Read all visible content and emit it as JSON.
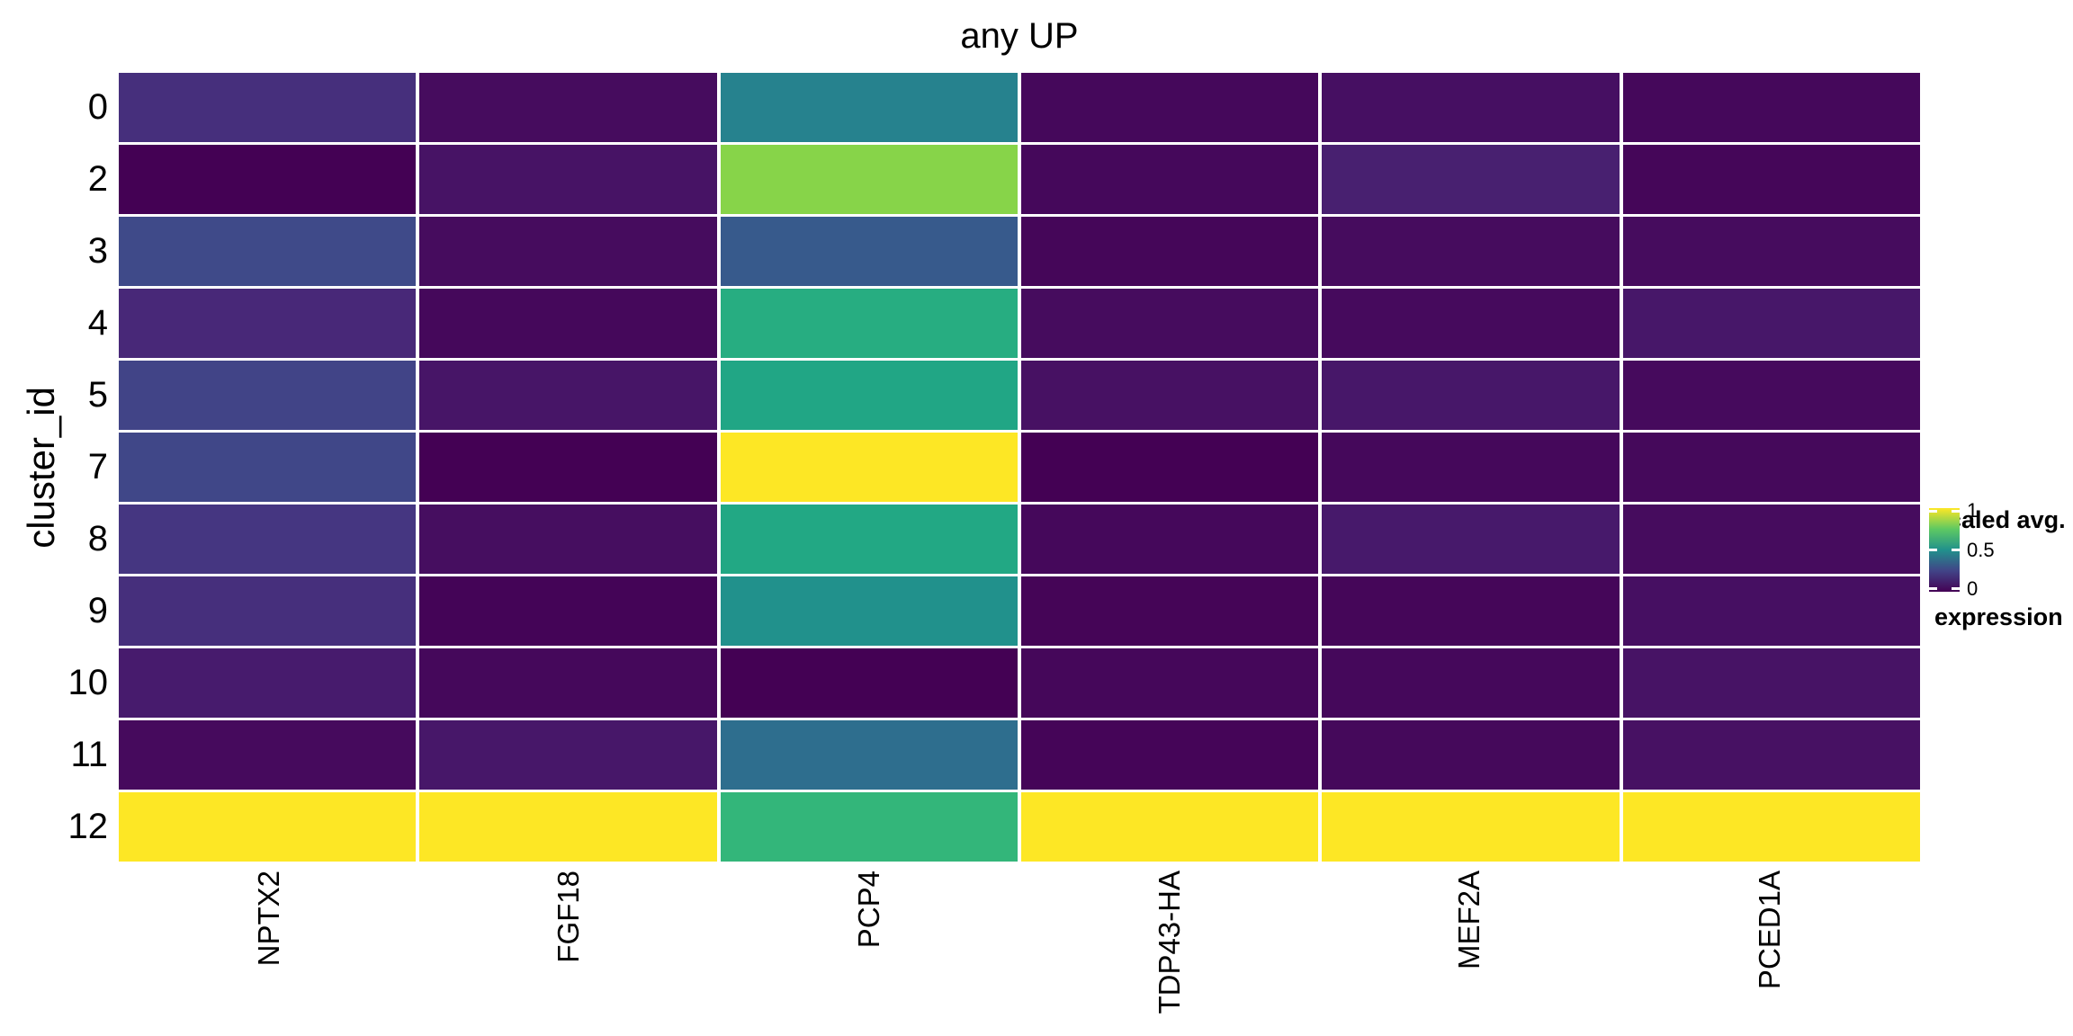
{
  "title": "any UP",
  "colors": {
    "background": "#ffffff",
    "text": "#000000",
    "tile_gap": "#ffffff",
    "viridis_low": "#440154",
    "viridis_mid": "#21918c",
    "viridis_high": "#fde725"
  },
  "axes": {
    "y_title": "cluster_id",
    "x_labels": [
      "NPTX2",
      "FGF18",
      "PCP4",
      "TDP43-HA",
      "MEF2A",
      "PCED1A"
    ],
    "y_labels": [
      "0",
      "2",
      "3",
      "4",
      "5",
      "7",
      "8",
      "9",
      "10",
      "11",
      "12"
    ]
  },
  "legend": {
    "title_line1": "scaled avg.",
    "title_line2": "expression",
    "ticks": [
      {
        "label": "1",
        "pos_pct": 3.5
      },
      {
        "label": "0.5",
        "pos_pct": 50
      },
      {
        "label": "0",
        "pos_pct": 96.5
      }
    ]
  },
  "chart_data": {
    "type": "heatmap",
    "title": "any UP",
    "xlabel": "",
    "ylabel": "cluster_id",
    "legend_title": "scaled avg. expression",
    "colorscale": "viridis",
    "value_range": [
      0,
      1
    ],
    "grid": false,
    "legend_position": "right",
    "columns": [
      "NPTX2",
      "FGF18",
      "PCP4",
      "TDP43-HA",
      "MEF2A",
      "PCED1A"
    ],
    "rows": [
      "0",
      "2",
      "3",
      "4",
      "5",
      "7",
      "8",
      "9",
      "10",
      "11",
      "12"
    ],
    "values": [
      [
        0.12,
        0.03,
        0.44,
        0.02,
        0.04,
        0.02
      ],
      [
        0.0,
        0.05,
        0.82,
        0.02,
        0.08,
        0.015
      ],
      [
        0.22,
        0.03,
        0.28,
        0.015,
        0.03,
        0.03
      ],
      [
        0.1,
        0.02,
        0.62,
        0.03,
        0.025,
        0.06
      ],
      [
        0.2,
        0.055,
        0.59,
        0.045,
        0.06,
        0.025
      ],
      [
        0.21,
        0.0,
        1.0,
        0.0,
        0.02,
        0.022
      ],
      [
        0.14,
        0.035,
        0.6,
        0.02,
        0.065,
        0.03
      ],
      [
        0.12,
        0.008,
        0.5,
        0.01,
        0.015,
        0.04
      ],
      [
        0.07,
        0.02,
        0.0,
        0.018,
        0.02,
        0.05
      ],
      [
        0.025,
        0.06,
        0.36,
        0.012,
        0.022,
        0.045
      ],
      [
        1.0,
        1.0,
        0.66,
        1.0,
        1.0,
        1.0
      ]
    ],
    "viridis_stops": [
      [
        0.0,
        "#440154"
      ],
      [
        0.05,
        "#471365"
      ],
      [
        0.1,
        "#482878"
      ],
      [
        0.15,
        "#443983"
      ],
      [
        0.2,
        "#414487"
      ],
      [
        0.25,
        "#3b528b"
      ],
      [
        0.3,
        "#355f8d"
      ],
      [
        0.35,
        "#2f6c8e"
      ],
      [
        0.4,
        "#2a788e"
      ],
      [
        0.45,
        "#25848e"
      ],
      [
        0.5,
        "#21918c"
      ],
      [
        0.55,
        "#1e9c89"
      ],
      [
        0.6,
        "#22a884"
      ],
      [
        0.65,
        "#2fb47c"
      ],
      [
        0.7,
        "#44bf70"
      ],
      [
        0.75,
        "#5ec962"
      ],
      [
        0.8,
        "#7ad151"
      ],
      [
        0.85,
        "#9bd93c"
      ],
      [
        0.9,
        "#bddf26"
      ],
      [
        0.95,
        "#dfe318"
      ],
      [
        1.0,
        "#fde725"
      ]
    ]
  }
}
